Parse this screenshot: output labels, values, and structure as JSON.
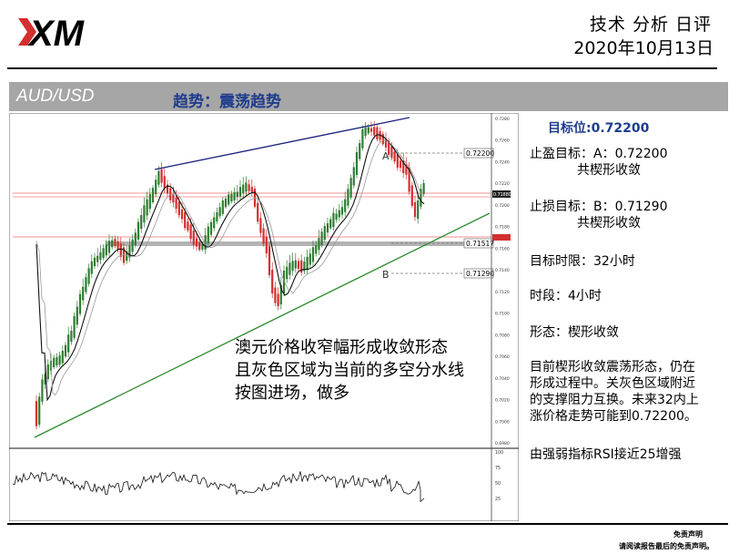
{
  "header": {
    "logo_text": "XM",
    "title": "技术 分析 日评",
    "date": "2020年10月13日"
  },
  "band": {
    "pair": "AUD/USD",
    "trend": "趋势：震荡趋势"
  },
  "chart_data": {
    "type": "candlestick",
    "pair": "AUD/USD",
    "timeframe": "4小时",
    "price_range": [
      0.698,
      0.728
    ],
    "price_ticks": [
      "0.7280",
      "0.7260",
      "0.7240",
      "0.7220",
      "0.7200",
      "0.7180",
      "0.7160",
      "0.7140",
      "0.7120",
      "0.7100",
      "0.7080",
      "0.7060",
      "0.7040",
      "0.7020",
      "0.7000",
      "0.6980"
    ],
    "current_price": "0.71880",
    "resistance_zone_label": "0.71880",
    "annotations": [
      {
        "label": "A",
        "price": "0.72200"
      },
      {
        "label": "",
        "price": "0.71517"
      },
      {
        "label": "B",
        "price": "0.71290"
      }
    ],
    "rsi": {
      "ticks": [
        "100",
        "75",
        "50",
        "25"
      ],
      "last_value": 25
    },
    "comment_lines": [
      "澳元价格收窄幅形成收敛形态",
      "且灰色区域为当前的多空分水线",
      "按图进场，做多"
    ]
  },
  "side": {
    "target": "目标位:0.72200",
    "tp_line1": "止盈目标：A：0.72200",
    "tp_line2": "共楔形收敛",
    "sl_line1": "止损目标：B：0.71290",
    "sl_line2": "共楔形收敛",
    "timelimit": "目标时限：32小时",
    "period": "时段：4小时",
    "pattern": "形态：楔形收敛",
    "desc1": "目前楔形收敛震荡形态，仍在",
    "desc2": "形成过程中。关灰色区域附近",
    "desc3": "的支撑阻力互换。未来32内上",
    "desc4": "涨价格走势可能到0.72200。",
    "rsi_note": "由强弱指标RSI接近25增强"
  },
  "footer": {
    "disclaimer_title": "免责声明",
    "disclaimer_text": "请阅读报告最后的免责声明。"
  },
  "colors": {
    "candle_up": "#2e7d32",
    "candle_down": "#d32f2f",
    "upper_trend": "#1a237e",
    "lower_trend": "#2e8b2e",
    "zone": "#f4a6a6"
  }
}
